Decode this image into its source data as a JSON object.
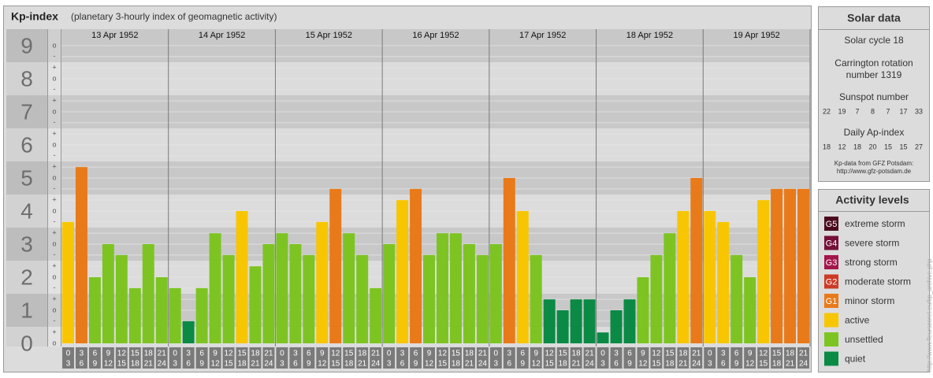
{
  "chart_data": {
    "type": "bar",
    "title": "Kp-index",
    "subtitle": "(planetary 3-hourly index of geomagnetic activity)",
    "ylim": [
      0,
      9.5
    ],
    "yticks": [
      0,
      1,
      2,
      3,
      4,
      5,
      6,
      7,
      8,
      9
    ],
    "minor_yticks": [
      {
        "value": 0,
        "label": "o"
      },
      {
        "value": 0.33,
        "label": "+"
      },
      {
        "value": 0.67,
        "label": "-"
      },
      {
        "value": 1,
        "label": "o"
      },
      {
        "value": 1.33,
        "label": "+"
      },
      {
        "value": 1.67,
        "label": "-"
      },
      {
        "value": 2,
        "label": "o"
      },
      {
        "value": 2.33,
        "label": "+"
      },
      {
        "value": 2.67,
        "label": "-"
      },
      {
        "value": 3,
        "label": "o"
      },
      {
        "value": 3.33,
        "label": "+"
      },
      {
        "value": 3.67,
        "label": "-"
      },
      {
        "value": 4,
        "label": "o"
      },
      {
        "value": 4.33,
        "label": "+"
      },
      {
        "value": 4.67,
        "label": "-"
      },
      {
        "value": 5,
        "label": "o"
      },
      {
        "value": 5.33,
        "label": "+"
      },
      {
        "value": 5.67,
        "label": "-"
      },
      {
        "value": 6,
        "label": "o"
      },
      {
        "value": 6.33,
        "label": "+"
      },
      {
        "value": 6.67,
        "label": "-"
      },
      {
        "value": 7,
        "label": "o"
      },
      {
        "value": 7.33,
        "label": "+"
      },
      {
        "value": 7.67,
        "label": "-"
      },
      {
        "value": 8,
        "label": "o"
      },
      {
        "value": 8.33,
        "label": "+"
      },
      {
        "value": 8.67,
        "label": "-"
      },
      {
        "value": 9,
        "label": "o"
      }
    ],
    "hour_labels": [
      [
        "0",
        "3"
      ],
      [
        "3",
        "6"
      ],
      [
        "6",
        "9"
      ],
      [
        "9",
        "12"
      ],
      [
        "12",
        "15"
      ],
      [
        "15",
        "18"
      ],
      [
        "18",
        "21"
      ],
      [
        "21",
        "24"
      ]
    ],
    "days": [
      {
        "date": "13 Apr 1952",
        "values": [
          3.67,
          5.33,
          2,
          3,
          2.67,
          1.67,
          3,
          2
        ],
        "colors": [
          "#f7c600",
          "#e87a1a",
          "#7dc423",
          "#7dc423",
          "#7dc423",
          "#7dc423",
          "#7dc423",
          "#7dc423"
        ]
      },
      {
        "date": "14 Apr 1952",
        "values": [
          1.67,
          0.67,
          1.67,
          3.33,
          2.67,
          4,
          2.33,
          3
        ],
        "colors": [
          "#7dc423",
          "#0b8a45",
          "#7dc423",
          "#7dc423",
          "#7dc423",
          "#f7c600",
          "#7dc423",
          "#7dc423"
        ]
      },
      {
        "date": "15 Apr 1952",
        "values": [
          3.33,
          3,
          2.67,
          3.67,
          4.67,
          3.33,
          2.67,
          1.67
        ],
        "colors": [
          "#7dc423",
          "#7dc423",
          "#7dc423",
          "#f7c600",
          "#e87a1a",
          "#7dc423",
          "#7dc423",
          "#7dc423"
        ]
      },
      {
        "date": "16 Apr 1952",
        "values": [
          3,
          4.33,
          4.67,
          2.67,
          3.33,
          3.33,
          3,
          2.67
        ],
        "colors": [
          "#7dc423",
          "#f7c600",
          "#e87a1a",
          "#7dc423",
          "#7dc423",
          "#7dc423",
          "#7dc423",
          "#7dc423"
        ]
      },
      {
        "date": "17 Apr 1952",
        "values": [
          3,
          5,
          4,
          2.67,
          1.33,
          1,
          1.33,
          1.33
        ],
        "colors": [
          "#7dc423",
          "#e87a1a",
          "#f7c600",
          "#7dc423",
          "#0b8a45",
          "#0b8a45",
          "#0b8a45",
          "#0b8a45"
        ]
      },
      {
        "date": "18 Apr 1952",
        "values": [
          0.33,
          1,
          1.33,
          2,
          2.67,
          3.33,
          4,
          5
        ],
        "colors": [
          "#0b8a45",
          "#0b8a45",
          "#0b8a45",
          "#7dc423",
          "#7dc423",
          "#7dc423",
          "#f7c600",
          "#e87a1a"
        ]
      },
      {
        "date": "19 Apr 1952",
        "values": [
          4,
          3.67,
          2.67,
          2,
          4.33,
          4.67,
          4.67,
          4.67
        ],
        "colors": [
          "#f7c600",
          "#f7c600",
          "#7dc423",
          "#7dc423",
          "#f7c600",
          "#e87a1a",
          "#e87a1a",
          "#e87a1a"
        ]
      }
    ]
  },
  "solar_data": {
    "title": "Solar data",
    "cycle": "Solar cycle 18",
    "rotation": [
      "Carrington rotation",
      "number 1319"
    ],
    "sunspot_title": "Sunspot number",
    "sunspot": [
      "22",
      "19",
      "7",
      "8",
      "7",
      "17",
      "33"
    ],
    "ap_title": "Daily Ap-index",
    "ap": [
      "18",
      "12",
      "18",
      "20",
      "15",
      "15",
      "27"
    ],
    "source": [
      "Kp-data from GFZ Potsdam:",
      "http://www.gfz-potsdam.de"
    ]
  },
  "activity": {
    "title": "Activity levels",
    "levels": [
      {
        "code": "G5",
        "name": "extreme storm",
        "color": "#4a0a1c"
      },
      {
        "code": "G4",
        "name": "severe storm",
        "color": "#761038"
      },
      {
        "code": "G3",
        "name": "strong storm",
        "color": "#a3164c"
      },
      {
        "code": "G2",
        "name": "moderate storm",
        "color": "#cc3a26"
      },
      {
        "code": "G1",
        "name": "minor storm",
        "color": "#e87a1a"
      },
      {
        "name": "active",
        "color": "#f7c600"
      },
      {
        "name": "unsettled",
        "color": "#7dc423"
      },
      {
        "name": "quiet",
        "color": "#0b8a45"
      }
    ]
  },
  "side_url": "http://www.fleurscorel.eu/kp_archive.php"
}
